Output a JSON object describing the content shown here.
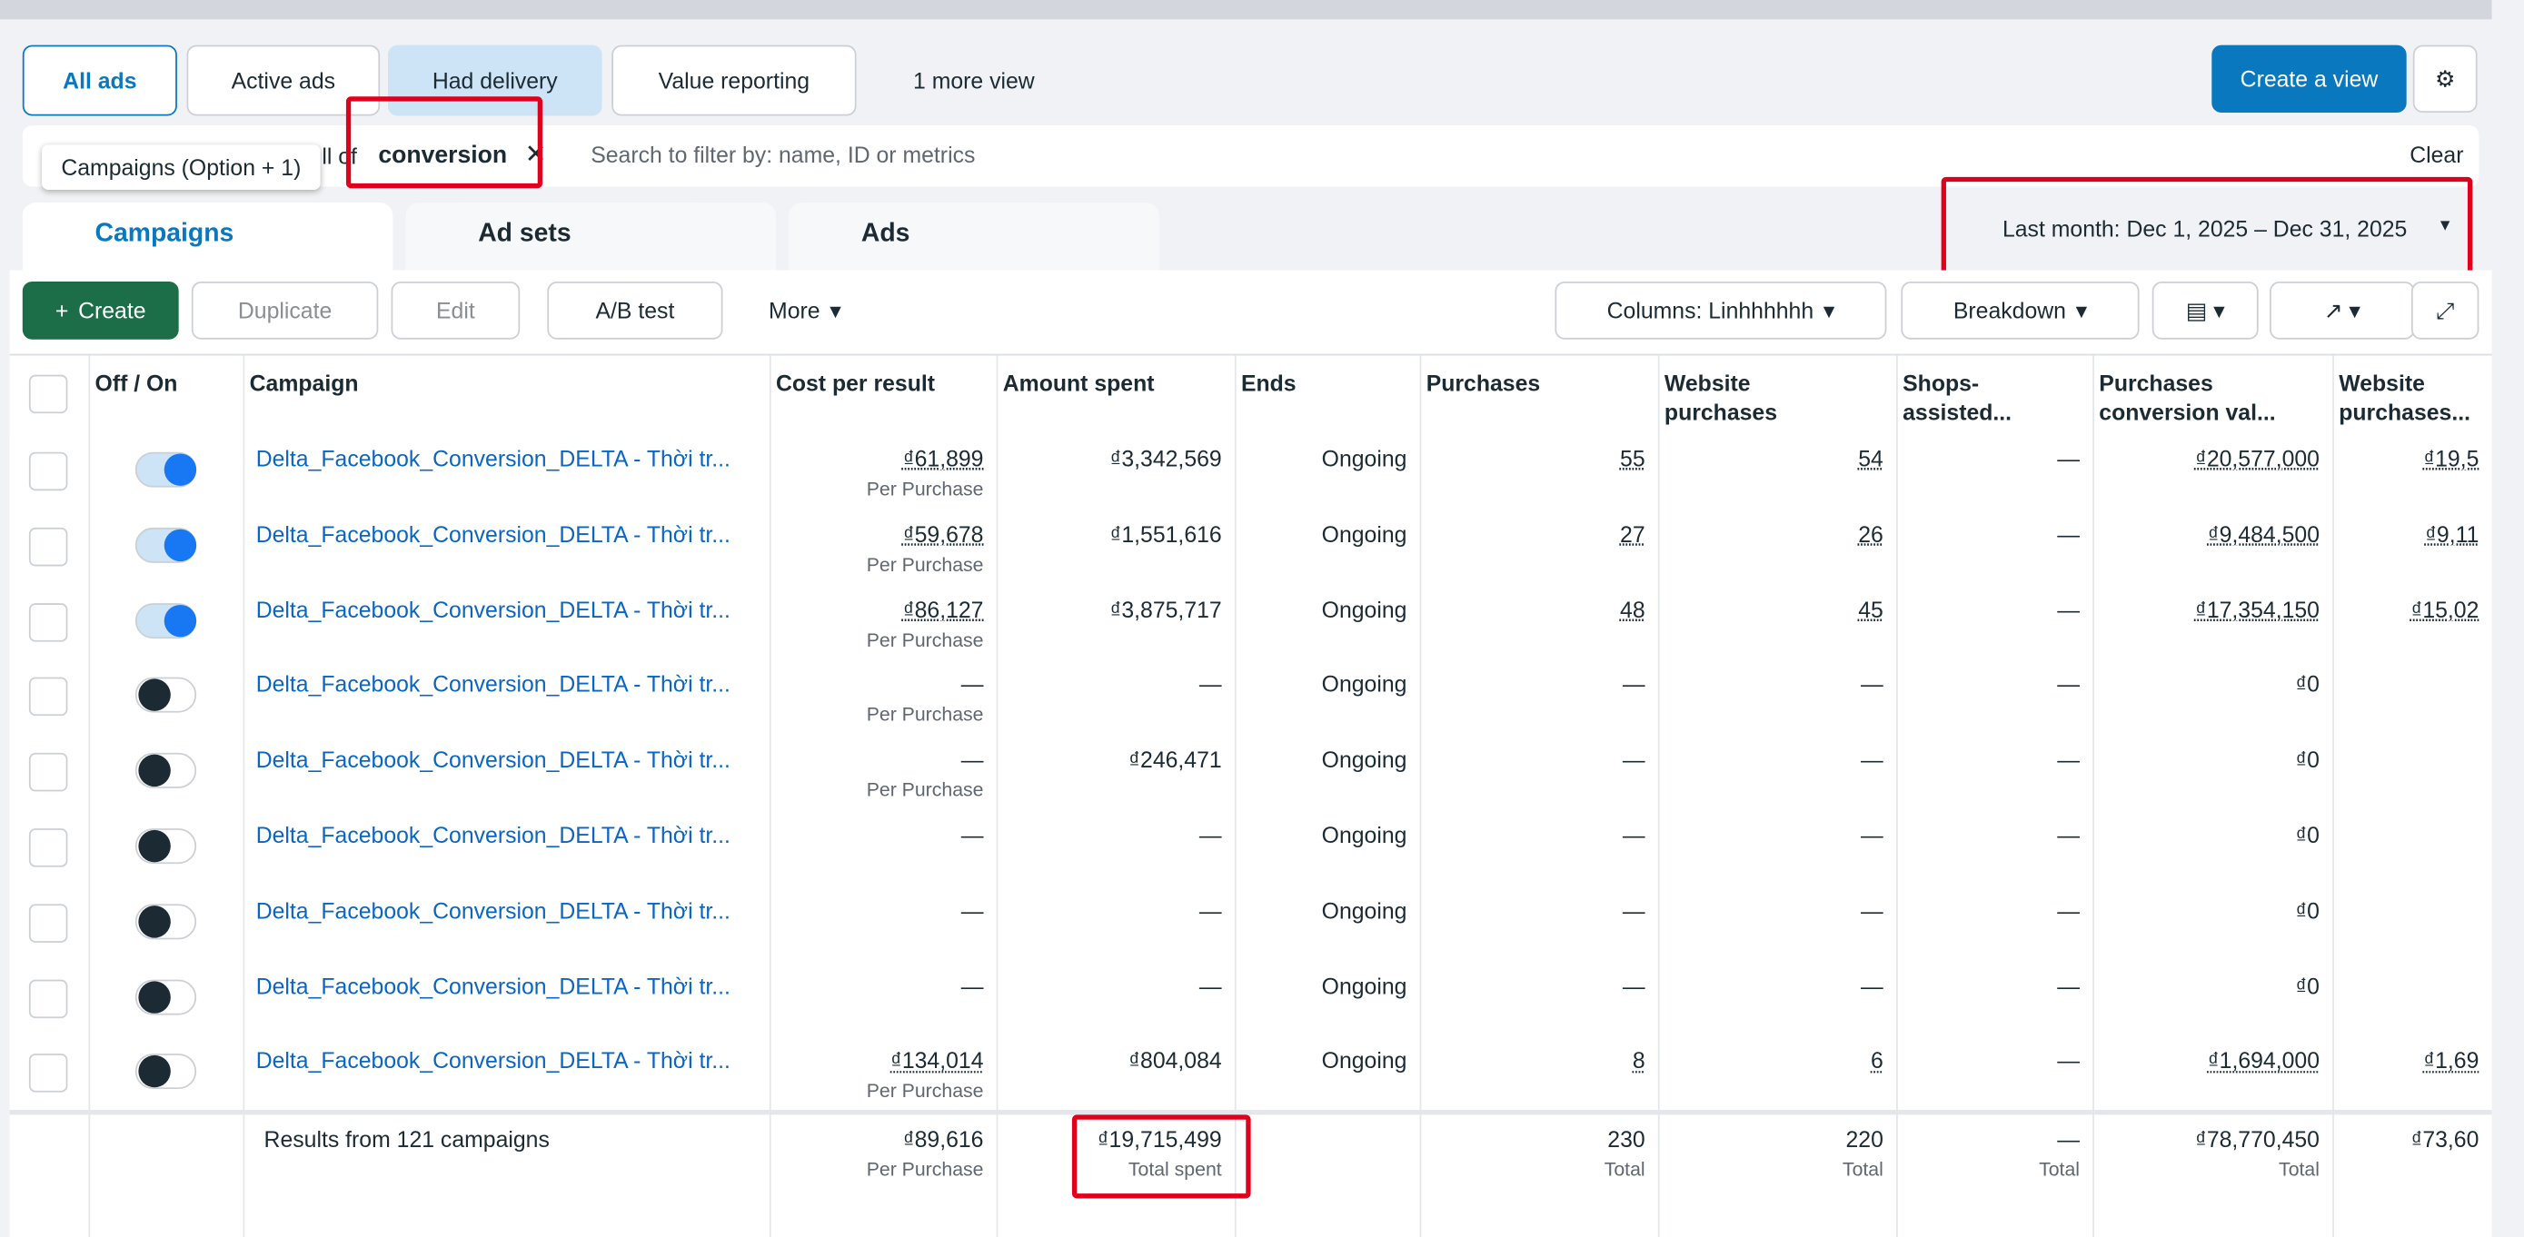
{
  "views": {
    "items": [
      "All ads",
      "Active ads",
      "Had delivery",
      "Value reporting",
      "1 more view"
    ],
    "create_view": "Create a view"
  },
  "filter": {
    "tooltip": "Campaigns (Option + 1)",
    "chip_prefix": "ll of",
    "chip_value": "conversion",
    "search_placeholder": "Search to filter by: name, ID or metrics",
    "clear": "Clear"
  },
  "tabs": [
    "Campaigns",
    "Ad sets",
    "Ads"
  ],
  "date_range": "Last month: Dec 1, 2025 – Dec 31, 2025",
  "toolbar": {
    "create": "Create",
    "duplicate": "Duplicate",
    "edit": "Edit",
    "ab_test": "A/B test",
    "more": "More",
    "columns": "Columns: Linhhhhhh",
    "breakdown": "Breakdown"
  },
  "table": {
    "columns": [
      "Off / On",
      "Campaign",
      "Cost per result",
      "Amount spent",
      "Ends",
      "Purchases",
      "Website purchases",
      "Shops-assisted...",
      "Purchases conversion val...",
      "Website purchases..."
    ],
    "rows": [
      {
        "name": "Delta_Facebook_Conversion_DELTA - Thời tr...",
        "on": true,
        "cost": "₫61,899",
        "cost_note": "Per Purchase",
        "spent": "₫3,342,569",
        "ends": "Ongoing",
        "purchases": "55",
        "web_purchases": "54",
        "shops": "—",
        "conv_value": "₫20,577,000",
        "web_value": "₫19,5"
      },
      {
        "name": "Delta_Facebook_Conversion_DELTA - Thời tr...",
        "on": true,
        "cost": "₫59,678",
        "cost_note": "Per Purchase",
        "spent": "₫1,551,616",
        "ends": "Ongoing",
        "purchases": "27",
        "web_purchases": "26",
        "shops": "—",
        "conv_value": "₫9,484,500",
        "web_value": "₫9,11"
      },
      {
        "name": "Delta_Facebook_Conversion_DELTA - Thời tr...",
        "on": true,
        "cost": "₫86,127",
        "cost_note": "Per Purchase",
        "spent": "₫3,875,717",
        "ends": "Ongoing",
        "purchases": "48",
        "web_purchases": "45",
        "shops": "—",
        "conv_value": "₫17,354,150",
        "web_value": "₫15,02"
      },
      {
        "name": "Delta_Facebook_Conversion_DELTA - Thời tr...",
        "on": false,
        "cost": "—",
        "cost_note": "Per Purchase",
        "spent": "—",
        "ends": "Ongoing",
        "purchases": "—",
        "web_purchases": "—",
        "shops": "—",
        "conv_value": "₫0",
        "web_value": null
      },
      {
        "name": "Delta_Facebook_Conversion_DELTA - Thời tr...",
        "on": false,
        "cost": "—",
        "cost_note": "Per Purchase",
        "spent": "₫246,471",
        "ends": "Ongoing",
        "purchases": "—",
        "web_purchases": "—",
        "shops": "—",
        "conv_value": "₫0",
        "web_value": null
      },
      {
        "name": "Delta_Facebook_Conversion_DELTA - Thời tr...",
        "on": false,
        "cost": "—",
        "cost_note": null,
        "spent": "—",
        "ends": "Ongoing",
        "purchases": "—",
        "web_purchases": "—",
        "shops": "—",
        "conv_value": "₫0",
        "web_value": null
      },
      {
        "name": "Delta_Facebook_Conversion_DELTA - Thời tr...",
        "on": false,
        "cost": "—",
        "cost_note": null,
        "spent": "—",
        "ends": "Ongoing",
        "purchases": "—",
        "web_purchases": "—",
        "shops": "—",
        "conv_value": "₫0",
        "web_value": null
      },
      {
        "name": "Delta_Facebook_Conversion_DELTA - Thời tr...",
        "on": false,
        "cost": "—",
        "cost_note": null,
        "spent": "—",
        "ends": "Ongoing",
        "purchases": "—",
        "web_purchases": "—",
        "shops": "—",
        "conv_value": "₫0",
        "web_value": null
      },
      {
        "name": "Delta_Facebook_Conversion_DELTA - Thời tr...",
        "on": false,
        "cost": "₫134,014",
        "cost_note": "Per Purchase",
        "spent": "₫804,084",
        "ends": "Ongoing",
        "purchases": "8",
        "web_purchases": "6",
        "shops": "—",
        "conv_value": "₫1,694,000",
        "web_value": "₫1,69"
      }
    ],
    "footer": {
      "label": "Results from 121 campaigns",
      "cost": "₫89,616",
      "cost_note": "Per Purchase",
      "spent": "₫19,715,499",
      "spent_note": "Total spent",
      "purchases": "230",
      "purchases_note": "Total",
      "web_purchases": "220",
      "web_purchases_note": "Total",
      "shops": "—",
      "shops_note": "Total",
      "conv_value": "₫78,770,450",
      "conv_value_note": "Total",
      "web_value": "₫73,60"
    }
  }
}
